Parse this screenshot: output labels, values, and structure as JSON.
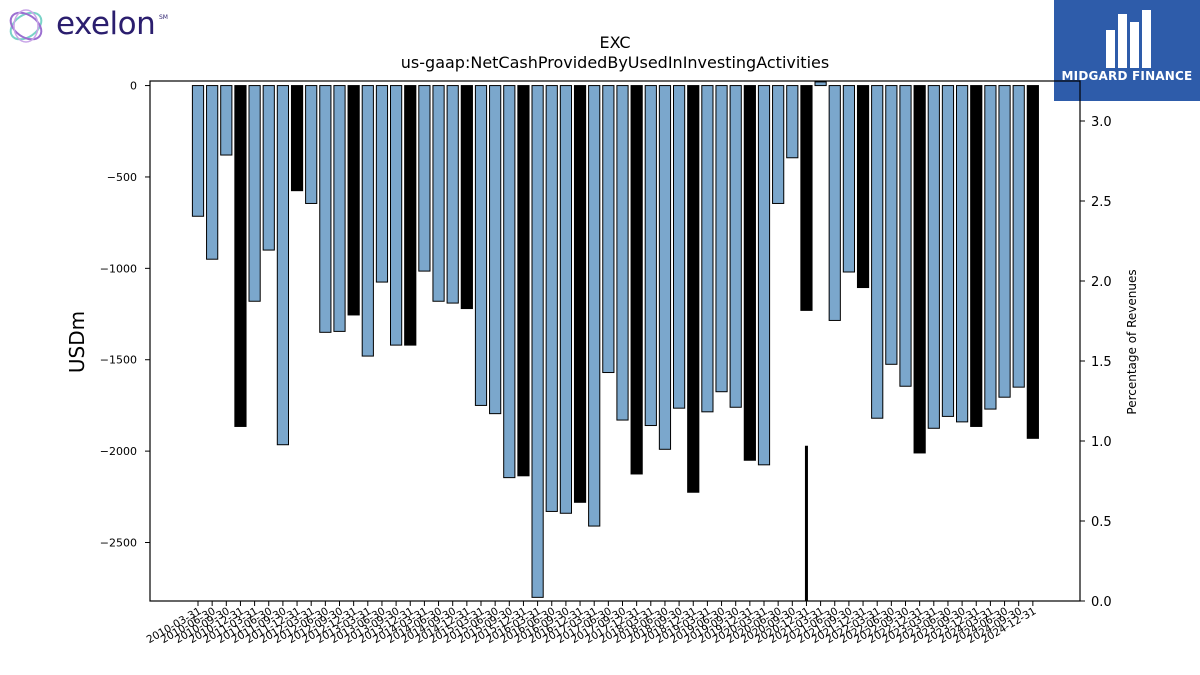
{
  "logos": {
    "left": {
      "text": "exelon",
      "mark": "SM"
    },
    "right": {
      "text": "MIDGARD FINANCE"
    }
  },
  "colors": {
    "bar": "#7ba7cc",
    "bar_highlight": "#000000",
    "edge": "#000000"
  },
  "chart_data": {
    "type": "bar",
    "title": "EXC",
    "subtitle": "us-gaap:NetCashProvidedByUsedInInvestingActivities",
    "ylabel": "USDm",
    "y2label": "Percentage of Revenues",
    "ylim": [
      -2820,
      25
    ],
    "y2lim": [
      0,
      3.25
    ],
    "yticks": [
      0,
      -500,
      -1000,
      -1500,
      -2000,
      -2500
    ],
    "y2ticks": [
      "0.0",
      "0.5",
      "1.0",
      "1.5",
      "2.0",
      "2.5",
      "3.0"
    ],
    "x": [
      "2010-03-31",
      "2010-06-30",
      "2010-09-30",
      "2010-12-31",
      "2011-03-31",
      "2011-06-30",
      "2011-09-30",
      "2011-12-31",
      "2012-03-31",
      "2012-06-30",
      "2012-09-30",
      "2012-12-31",
      "2013-03-31",
      "2013-06-30",
      "2013-09-30",
      "2013-12-31",
      "2014-03-31",
      "2014-06-30",
      "2014-09-30",
      "2014-12-31",
      "2015-03-31",
      "2015-06-30",
      "2015-09-30",
      "2015-12-31",
      "2016-03-31",
      "2016-06-30",
      "2016-09-30",
      "2016-12-31",
      "2017-03-31",
      "2017-06-30",
      "2017-09-30",
      "2017-12-31",
      "2018-03-31",
      "2018-06-30",
      "2018-09-30",
      "2018-12-31",
      "2019-03-31",
      "2019-06-30",
      "2019-09-30",
      "2019-12-31",
      "2020-03-31",
      "2020-06-30",
      "2020-09-30",
      "2020-12-31",
      "2021-03-31",
      "2021-06-30",
      "2021-09-30",
      "2021-12-31",
      "2022-03-31",
      "2022-06-30",
      "2022-09-30",
      "2022-12-31",
      "2023-03-31",
      "2023-06-30",
      "2023-09-30",
      "2023-12-31",
      "2024-03-31",
      "2024-06-30",
      "2024-09-30",
      "2024-12-31"
    ],
    "values": [
      -715,
      -950,
      -380,
      -1865,
      -1180,
      -900,
      -1965,
      -575,
      -645,
      -1350,
      -1345,
      -1255,
      -1480,
      -1075,
      -1420,
      -1420,
      -1015,
      -1180,
      -1190,
      -1220,
      -1750,
      -1795,
      -2145,
      -2135,
      -2800,
      -2330,
      -2340,
      -2280,
      -2410,
      -1570,
      -1830,
      -2125,
      -1860,
      -1990,
      -1765,
      -2225,
      -1785,
      -1675,
      -1760,
      -2050,
      -2075,
      -645,
      -395,
      -1230,
      20,
      -1285,
      -1020,
      -1105,
      -1820,
      -1525,
      -1645,
      -2010,
      -1875,
      -1810,
      -1840,
      -1865,
      -1770,
      -1705,
      -1650,
      -1930
    ],
    "highlight": [
      false,
      false,
      false,
      true,
      false,
      false,
      false,
      true,
      false,
      false,
      false,
      true,
      false,
      false,
      false,
      true,
      false,
      false,
      false,
      true,
      false,
      false,
      false,
      true,
      false,
      false,
      false,
      true,
      false,
      false,
      false,
      true,
      false,
      false,
      false,
      true,
      false,
      false,
      false,
      true,
      false,
      false,
      false,
      true,
      false,
      false,
      false,
      true,
      false,
      false,
      false,
      true,
      false,
      false,
      false,
      true,
      false,
      false,
      false,
      true
    ],
    "pct_series": {
      "x": "2020-12-31",
      "value": 0.97
    },
    "grid": false,
    "legend": "none"
  }
}
